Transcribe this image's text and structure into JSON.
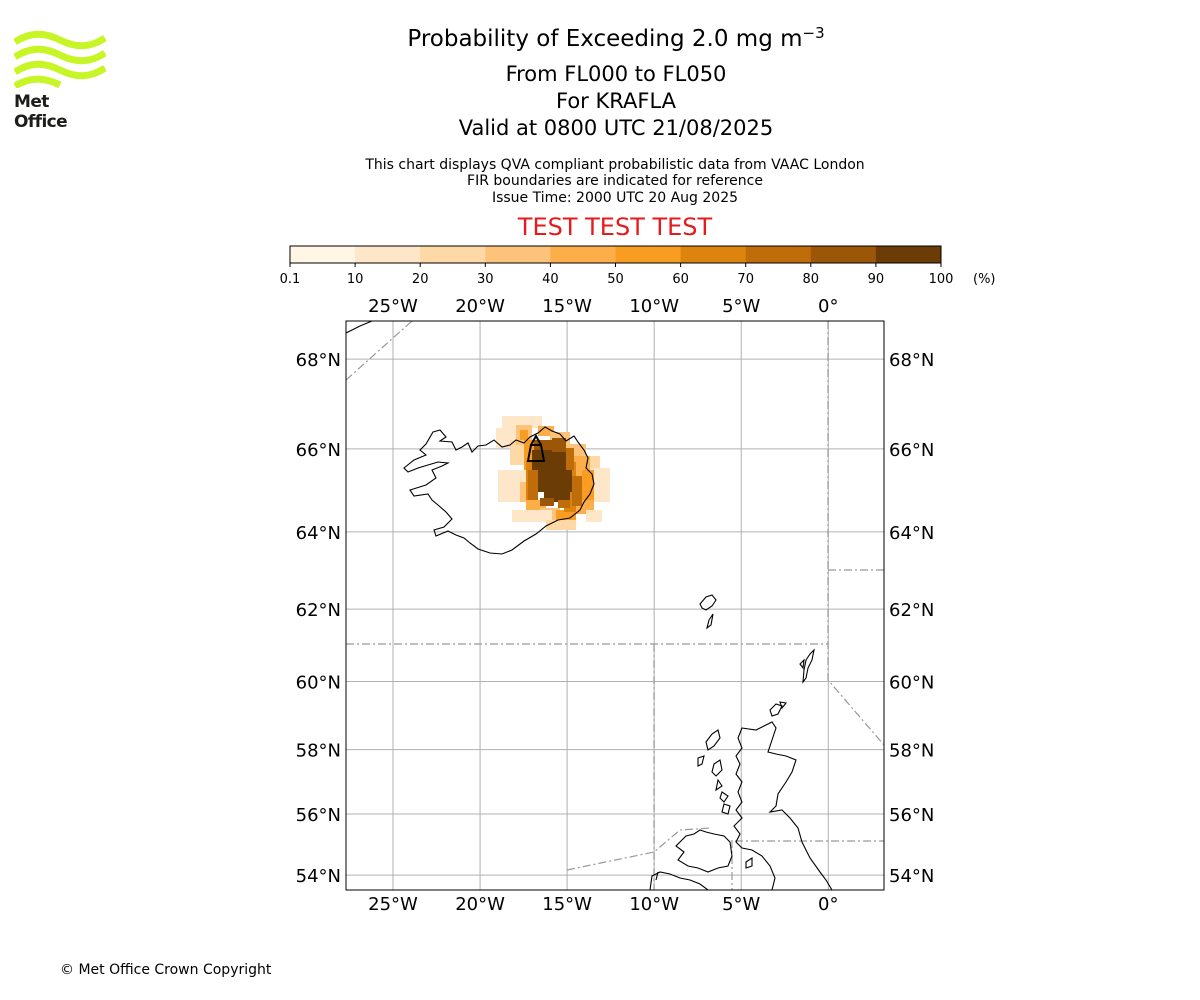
{
  "logo": {
    "name": "met-office-logo",
    "text": "Met Office",
    "color": "#c8f526"
  },
  "header": {
    "title_prefix": "Probability of Exceeding 2.0 mg m",
    "title_exponent": "−3",
    "levels": "From FL000 to FL050",
    "volcano": "For KRAFLA",
    "valid": "Valid at 0800 UTC 21/08/2025",
    "info_line1": "This chart displays QVA compliant probabilistic data from VAAC London",
    "info_line2": "FIR boundaries are indicated for reference",
    "issue_time": "Issue Time: 2000 UTC 20 Aug 2025",
    "test_banner": "TEST TEST TEST"
  },
  "colorbar": {
    "ticks": [
      "0.1",
      "10",
      "20",
      "30",
      "40",
      "50",
      "60",
      "70",
      "80",
      "90",
      "100"
    ],
    "unit": "(%)",
    "colors": [
      "#fff6e6",
      "#fee7c8",
      "#fed9a5",
      "#fdc37a",
      "#fcae4a",
      "#f89d22",
      "#dd840e",
      "#bf6d0a",
      "#9b5608",
      "#6b3c06"
    ]
  },
  "map": {
    "projection": "geographic",
    "lon_range": [
      -27.7,
      3.2
    ],
    "lat_range": [
      53.5,
      68.8
    ],
    "lon_ticks": [
      {
        "value": -25,
        "label": "25°W"
      },
      {
        "value": -20,
        "label": "20°W"
      },
      {
        "value": -15,
        "label": "15°W"
      },
      {
        "value": -10,
        "label": "10°W"
      },
      {
        "value": -5,
        "label": "5°W"
      },
      {
        "value": 0,
        "label": "0°"
      }
    ],
    "lat_ticks": [
      {
        "value": 68,
        "label": "68°N"
      },
      {
        "value": 66,
        "label": "66°N"
      },
      {
        "value": 64,
        "label": "64°N"
      },
      {
        "value": 62,
        "label": "62°N"
      },
      {
        "value": 60,
        "label": "60°N"
      },
      {
        "value": 58,
        "label": "58°N"
      },
      {
        "value": 56,
        "label": "56°N"
      },
      {
        "value": 54,
        "label": "54°N"
      }
    ],
    "grid": true,
    "volcano_marker": {
      "lon": -16.8,
      "lat": 65.72
    }
  },
  "footer": {
    "copyright": "© Met Office Crown Copyright"
  }
}
